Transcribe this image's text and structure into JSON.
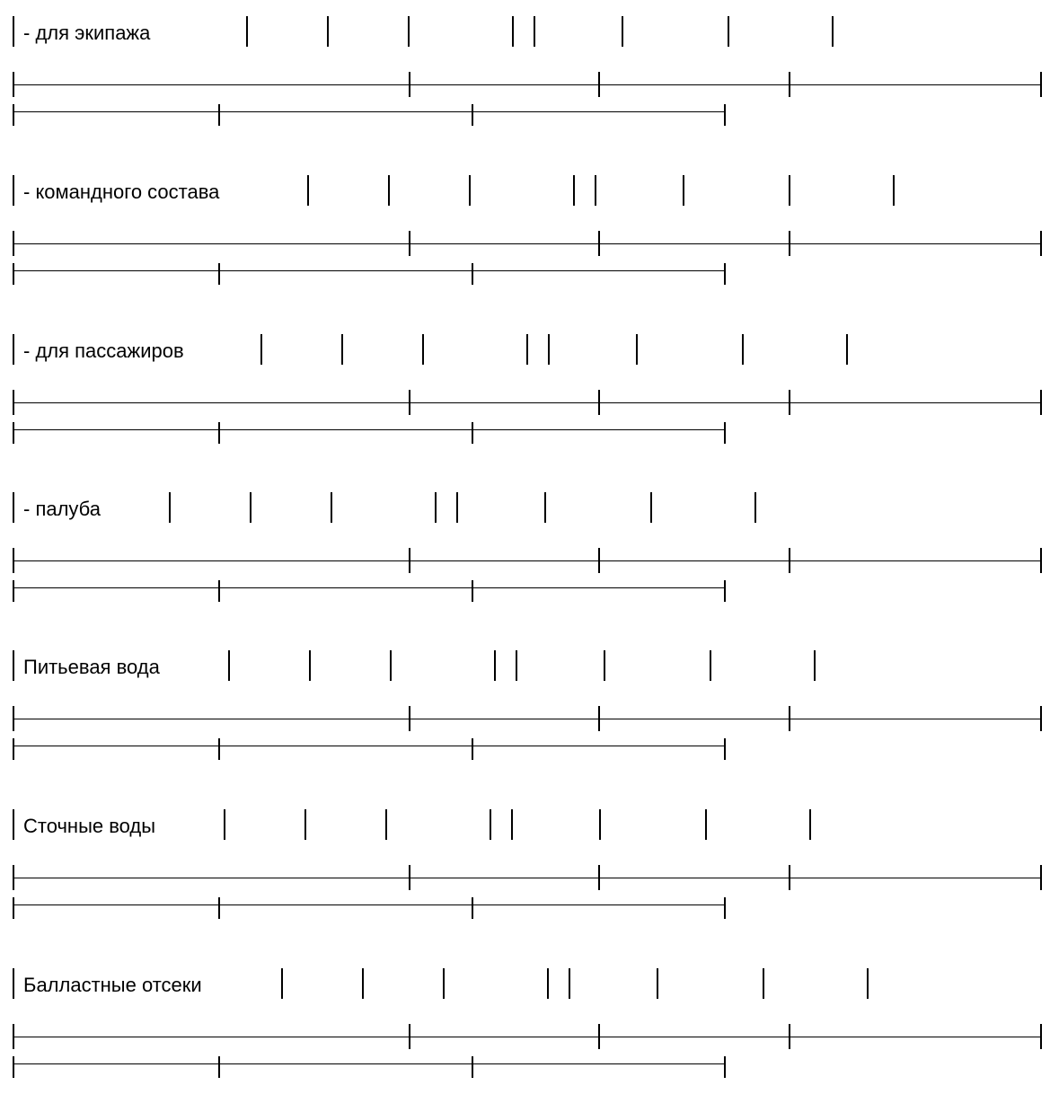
{
  "rows": [
    {
      "label": "- для экипажа"
    },
    {
      "label": "- командного состава"
    },
    {
      "label": "- для пассажиров"
    },
    {
      "label": "- палуба"
    },
    {
      "label": "Питьевая вода"
    },
    {
      "label": "Сточные воды"
    },
    {
      "label": "Балластные отсеки"
    }
  ]
}
